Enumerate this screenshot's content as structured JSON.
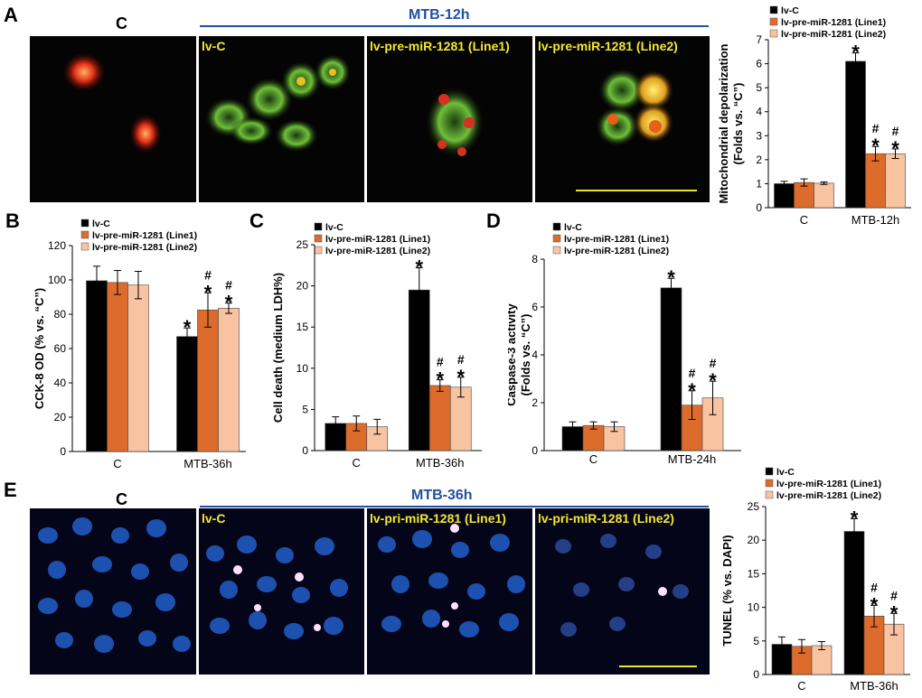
{
  "panels": {
    "a": {
      "letter": "A",
      "control_label": "C",
      "group_label": "MTB-12h",
      "images": [
        "lv-C",
        "lv-pre-miR-1281 (Line1)",
        "lv-pre-miR-1281 (Line2)"
      ]
    },
    "b": {
      "letter": "B"
    },
    "c": {
      "letter": "C"
    },
    "d": {
      "letter": "D"
    },
    "e": {
      "letter": "E",
      "control_label": "C",
      "group_label": "MTB-36h",
      "images": [
        "lv-C",
        "lv-pri-miR-1281 (Line1)",
        "lv-pri-miR-1281 (Line2)"
      ]
    }
  },
  "colors": {
    "series": [
      "#000000",
      "#dd6b2b",
      "#f7c3a0"
    ],
    "group_line": "#2050a0",
    "micro_label": "#f2e830"
  },
  "chart_data": [
    {
      "id": "A",
      "type": "bar",
      "ylabel": [
        "Mitochondrial depolarization",
        "(Folds vs. “C”)"
      ],
      "categories": [
        "C",
        "MTB-12h"
      ],
      "ylim": [
        0,
        7
      ],
      "yticks": [
        0,
        1,
        2,
        3,
        4,
        5,
        6,
        7
      ],
      "series": [
        {
          "name": "lv-C",
          "values": [
            1.0,
            6.1
          ],
          "errors": [
            0.1,
            0.35
          ]
        },
        {
          "name": "lv-pre-miR-1281 (Line1)",
          "values": [
            1.05,
            2.25
          ],
          "errors": [
            0.15,
            0.3
          ]
        },
        {
          "name": "lv-pre-miR-1281 (Line2)",
          "values": [
            1.02,
            2.25
          ],
          "errors": [
            0.05,
            0.2
          ]
        }
      ],
      "annotations": [
        [
          "",
          "*"
        ],
        [
          "",
          "#*"
        ],
        [
          "",
          "#*"
        ]
      ]
    },
    {
      "id": "B",
      "type": "bar",
      "ylabel": [
        "CCK-8 OD (% vs. “C”)"
      ],
      "categories": [
        "C",
        "MTB-36h"
      ],
      "ylim": [
        0,
        120
      ],
      "yticks": [
        0,
        20,
        40,
        60,
        80,
        100,
        120
      ],
      "series": [
        {
          "name": "lv-C",
          "values": [
            99.5,
            67
          ],
          "errors": [
            8.5,
            5
          ]
        },
        {
          "name": "lv-pre-miR-1281 (Line1)",
          "values": [
            98.5,
            82.5
          ],
          "errors": [
            7,
            10
          ]
        },
        {
          "name": "lv-pre-miR-1281 (Line2)",
          "values": [
            97,
            83.5
          ],
          "errors": [
            8,
            3
          ]
        }
      ],
      "annotations": [
        [
          "",
          "*"
        ],
        [
          "",
          "#*"
        ],
        [
          "",
          "#*"
        ]
      ]
    },
    {
      "id": "C",
      "type": "bar",
      "ylabel": [
        "Cell death (medium LDH%)"
      ],
      "categories": [
        "C",
        "MTB-36h"
      ],
      "ylim": [
        0,
        25
      ],
      "yticks": [
        0,
        5,
        10,
        15,
        20,
        25
      ],
      "series": [
        {
          "name": "lv-C",
          "values": [
            3.3,
            19.5
          ],
          "errors": [
            0.8,
            2.7
          ]
        },
        {
          "name": "lv-pre-miR-1281 (Line1)",
          "values": [
            3.3,
            7.9
          ],
          "errors": [
            0.9,
            0.7
          ]
        },
        {
          "name": "lv-pre-miR-1281 (Line2)",
          "values": [
            2.9,
            7.7
          ],
          "errors": [
            0.9,
            1.2
          ]
        }
      ],
      "annotations": [
        [
          "",
          "*"
        ],
        [
          "",
          "#*"
        ],
        [
          "",
          "#*"
        ]
      ]
    },
    {
      "id": "D",
      "type": "bar",
      "ylabel": [
        "Caspase-3 activity",
        "(Folds vs. “C”)"
      ],
      "categories": [
        "C",
        "MTB-24h"
      ],
      "ylim": [
        0,
        8
      ],
      "yticks": [
        0,
        2,
        4,
        6,
        8
      ],
      "series": [
        {
          "name": "lv-C",
          "values": [
            1.0,
            6.8
          ],
          "errors": [
            0.2,
            0.4
          ]
        },
        {
          "name": "lv-pre-miR-1281 (Line1)",
          "values": [
            1.05,
            1.9
          ],
          "errors": [
            0.15,
            0.6
          ]
        },
        {
          "name": "lv-pre-miR-1281 (Line2)",
          "values": [
            1.0,
            2.2
          ],
          "errors": [
            0.2,
            0.7
          ]
        }
      ],
      "annotations": [
        [
          "",
          "*"
        ],
        [
          "",
          "#*"
        ],
        [
          "",
          "#*"
        ]
      ]
    },
    {
      "id": "E",
      "type": "bar",
      "ylabel": [
        "TUNEL (% vs. DAPI)"
      ],
      "categories": [
        "C",
        "MTB-36h"
      ],
      "ylim": [
        0,
        25
      ],
      "yticks": [
        0,
        5,
        10,
        15,
        20,
        25
      ],
      "series": [
        {
          "name": "lv-C",
          "values": [
            4.5,
            21.3
          ],
          "errors": [
            1.1,
            1.9
          ]
        },
        {
          "name": "lv-pre-miR-1281 (Line1)",
          "values": [
            4.2,
            8.7
          ],
          "errors": [
            1.0,
            1.6
          ]
        },
        {
          "name": "lv-pre-miR-1281 (Line2)",
          "values": [
            4.3,
            7.5
          ],
          "errors": [
            0.6,
            1.6
          ]
        }
      ],
      "annotations": [
        [
          "",
          "*"
        ],
        [
          "",
          "#*"
        ],
        [
          "",
          "#*"
        ]
      ]
    }
  ]
}
